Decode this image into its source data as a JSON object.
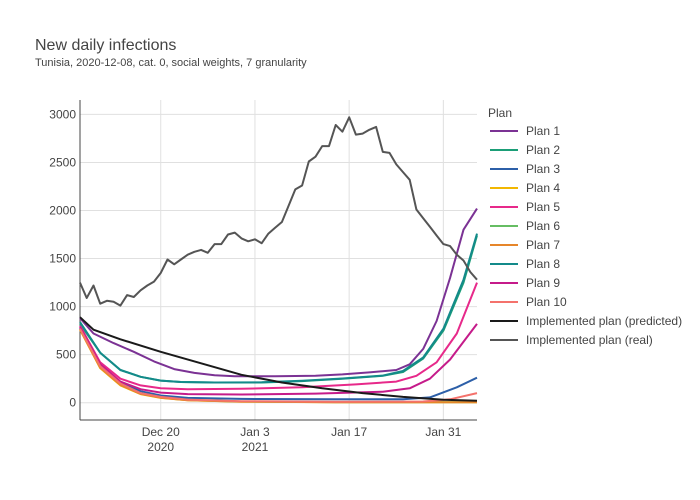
{
  "chart_data": {
    "type": "line",
    "title": "New daily infections",
    "subtitle": "Tunisia, 2020-12-08, cat. 0, social weights, 7 granularity",
    "xlabel": "",
    "ylabel": "",
    "x_start": "2020-12-08",
    "x_end": "2021-02-05",
    "x_ticks": [
      {
        "date": "2020-12-20",
        "label": "Dec 20",
        "sub": "2020"
      },
      {
        "date": "2021-01-03",
        "label": "Jan 3",
        "sub": "2021"
      },
      {
        "date": "2021-01-17",
        "label": "Jan 17",
        "sub": ""
      },
      {
        "date": "2021-01-31",
        "label": "Jan 31",
        "sub": ""
      }
    ],
    "ylim": [
      -180,
      3150
    ],
    "y_ticks": [
      0,
      500,
      1000,
      1500,
      2000,
      2500,
      3000
    ],
    "grid": true,
    "legend": {
      "title": "Plan",
      "position": "right"
    },
    "series": [
      {
        "name": "Plan 1",
        "color": "#7b3294",
        "points": [
          [
            "2020-12-08",
            880
          ],
          [
            "2020-12-10",
            720
          ],
          [
            "2020-12-13",
            620
          ],
          [
            "2020-12-16",
            530
          ],
          [
            "2020-12-19",
            430
          ],
          [
            "2020-12-22",
            350
          ],
          [
            "2020-12-25",
            310
          ],
          [
            "2020-12-28",
            285
          ],
          [
            "2020-12-31",
            275
          ],
          [
            "2021-01-06",
            275
          ],
          [
            "2021-01-12",
            280
          ],
          [
            "2021-01-16",
            295
          ],
          [
            "2021-01-20",
            315
          ],
          [
            "2021-01-24",
            340
          ],
          [
            "2021-01-26",
            400
          ],
          [
            "2021-01-28",
            560
          ],
          [
            "2021-01-30",
            850
          ],
          [
            "2021-02-01",
            1300
          ],
          [
            "2021-02-03",
            1800
          ],
          [
            "2021-02-05",
            2020
          ]
        ]
      },
      {
        "name": "Plan 2",
        "color": "#1b9e77",
        "points": [
          [
            "2020-12-08",
            820
          ],
          [
            "2020-12-11",
            520
          ],
          [
            "2020-12-14",
            340
          ],
          [
            "2020-12-17",
            270
          ],
          [
            "2020-12-20",
            230
          ],
          [
            "2020-12-23",
            215
          ],
          [
            "2020-12-28",
            210
          ],
          [
            "2021-01-04",
            210
          ],
          [
            "2021-01-10",
            225
          ],
          [
            "2021-01-16",
            250
          ],
          [
            "2021-01-22",
            280
          ],
          [
            "2021-01-25",
            320
          ],
          [
            "2021-01-28",
            460
          ],
          [
            "2021-01-31",
            750
          ],
          [
            "2021-02-03",
            1250
          ],
          [
            "2021-02-05",
            1740
          ]
        ]
      },
      {
        "name": "Plan 3",
        "color": "#2c5fa8",
        "points": [
          [
            "2020-12-08",
            780
          ],
          [
            "2020-12-11",
            400
          ],
          [
            "2020-12-14",
            210
          ],
          [
            "2020-12-17",
            120
          ],
          [
            "2020-12-20",
            75
          ],
          [
            "2020-12-24",
            50
          ],
          [
            "2021-01-01",
            40
          ],
          [
            "2021-01-15",
            35
          ],
          [
            "2021-01-25",
            35
          ],
          [
            "2021-01-29",
            55
          ],
          [
            "2021-02-02",
            160
          ],
          [
            "2021-02-05",
            260
          ]
        ]
      },
      {
        "name": "Plan 4",
        "color": "#f2b701",
        "points": [
          [
            "2020-12-08",
            760
          ],
          [
            "2020-12-11",
            360
          ],
          [
            "2020-12-14",
            180
          ],
          [
            "2020-12-17",
            90
          ],
          [
            "2020-12-20",
            50
          ],
          [
            "2020-12-24",
            25
          ],
          [
            "2021-01-01",
            10
          ],
          [
            "2021-01-15",
            5
          ],
          [
            "2021-02-05",
            5
          ]
        ]
      },
      {
        "name": "Plan 5",
        "color": "#e7298a",
        "points": [
          [
            "2020-12-08",
            800
          ],
          [
            "2020-12-11",
            420
          ],
          [
            "2020-12-14",
            250
          ],
          [
            "2020-12-17",
            180
          ],
          [
            "2020-12-20",
            150
          ],
          [
            "2020-12-24",
            140
          ],
          [
            "2021-01-01",
            145
          ],
          [
            "2021-01-10",
            160
          ],
          [
            "2021-01-18",
            190
          ],
          [
            "2021-01-24",
            220
          ],
          [
            "2021-01-27",
            280
          ],
          [
            "2021-01-30",
            420
          ],
          [
            "2021-02-02",
            720
          ],
          [
            "2021-02-05",
            1250
          ]
        ]
      },
      {
        "name": "Plan 6",
        "color": "#66bd63",
        "points": [
          [
            "2020-12-08",
            770
          ],
          [
            "2020-12-11",
            370
          ],
          [
            "2020-12-14",
            190
          ],
          [
            "2020-12-17",
            95
          ],
          [
            "2020-12-20",
            55
          ],
          [
            "2020-12-24",
            28
          ],
          [
            "2021-01-01",
            12
          ],
          [
            "2021-01-15",
            6
          ],
          [
            "2021-02-05",
            6
          ]
        ]
      },
      {
        "name": "Plan 7",
        "color": "#e6862a",
        "points": [
          [
            "2020-12-08",
            765
          ],
          [
            "2020-12-11",
            365
          ],
          [
            "2020-12-14",
            185
          ],
          [
            "2020-12-17",
            92
          ],
          [
            "2020-12-20",
            52
          ],
          [
            "2020-12-24",
            26
          ],
          [
            "2021-01-01",
            11
          ],
          [
            "2021-01-15",
            5
          ],
          [
            "2021-02-05",
            5
          ]
        ]
      },
      {
        "name": "Plan 8",
        "color": "#138a8a",
        "points": [
          [
            "2020-12-08",
            840
          ],
          [
            "2020-12-11",
            520
          ],
          [
            "2020-12-14",
            340
          ],
          [
            "2020-12-17",
            270
          ],
          [
            "2020-12-20",
            230
          ],
          [
            "2020-12-23",
            215
          ],
          [
            "2020-12-28",
            210
          ],
          [
            "2021-01-04",
            212
          ],
          [
            "2021-01-10",
            228
          ],
          [
            "2021-01-16",
            252
          ],
          [
            "2021-01-22",
            282
          ],
          [
            "2021-01-25",
            330
          ],
          [
            "2021-01-28",
            470
          ],
          [
            "2021-01-31",
            770
          ],
          [
            "2021-02-03",
            1280
          ],
          [
            "2021-02-05",
            1760
          ]
        ]
      },
      {
        "name": "Plan 9",
        "color": "#c51b8a",
        "points": [
          [
            "2020-12-08",
            790
          ],
          [
            "2020-12-11",
            400
          ],
          [
            "2020-12-14",
            220
          ],
          [
            "2020-12-17",
            140
          ],
          [
            "2020-12-20",
            105
          ],
          [
            "2020-12-24",
            90
          ],
          [
            "2021-01-01",
            85
          ],
          [
            "2021-01-12",
            95
          ],
          [
            "2021-01-22",
            115
          ],
          [
            "2021-01-26",
            150
          ],
          [
            "2021-01-29",
            250
          ],
          [
            "2021-02-01",
            450
          ],
          [
            "2021-02-05",
            820
          ]
        ]
      },
      {
        "name": "Plan 10",
        "color": "#f4726c",
        "points": [
          [
            "2020-12-08",
            770
          ],
          [
            "2020-12-11",
            380
          ],
          [
            "2020-12-14",
            200
          ],
          [
            "2020-12-17",
            100
          ],
          [
            "2020-12-20",
            60
          ],
          [
            "2020-12-24",
            32
          ],
          [
            "2021-01-01",
            16
          ],
          [
            "2021-01-15",
            10
          ],
          [
            "2021-01-28",
            12
          ],
          [
            "2021-02-01",
            35
          ],
          [
            "2021-02-05",
            100
          ]
        ]
      },
      {
        "name": "Implemented plan (predicted)",
        "color": "#1a1a1a",
        "points": [
          [
            "2020-12-08",
            890
          ],
          [
            "2020-12-10",
            760
          ],
          [
            "2020-12-14",
            660
          ],
          [
            "2020-12-20",
            530
          ],
          [
            "2020-12-26",
            410
          ],
          [
            "2021-01-01",
            290
          ],
          [
            "2021-01-07",
            210
          ],
          [
            "2021-01-13",
            150
          ],
          [
            "2021-01-19",
            100
          ],
          [
            "2021-01-25",
            60
          ],
          [
            "2021-01-31",
            30
          ],
          [
            "2021-02-05",
            20
          ]
        ]
      },
      {
        "name": "Implemented plan (real)",
        "color": "#555555",
        "points": [
          [
            "2020-12-08",
            1250
          ],
          [
            "2020-12-09",
            1090
          ],
          [
            "2020-12-10",
            1220
          ],
          [
            "2020-12-11",
            1030
          ],
          [
            "2020-12-12",
            1060
          ],
          [
            "2020-12-13",
            1050
          ],
          [
            "2020-12-14",
            1010
          ],
          [
            "2020-12-15",
            1120
          ],
          [
            "2020-12-16",
            1100
          ],
          [
            "2020-12-17",
            1170
          ],
          [
            "2020-12-18",
            1220
          ],
          [
            "2020-12-19",
            1260
          ],
          [
            "2020-12-20",
            1350
          ],
          [
            "2020-12-21",
            1490
          ],
          [
            "2020-12-22",
            1440
          ],
          [
            "2020-12-23",
            1490
          ],
          [
            "2020-12-24",
            1540
          ],
          [
            "2020-12-25",
            1570
          ],
          [
            "2020-12-26",
            1590
          ],
          [
            "2020-12-27",
            1560
          ],
          [
            "2020-12-28",
            1650
          ],
          [
            "2020-12-29",
            1650
          ],
          [
            "2020-12-30",
            1750
          ],
          [
            "2020-12-31",
            1770
          ],
          [
            "2021-01-01",
            1710
          ],
          [
            "2021-01-02",
            1680
          ],
          [
            "2021-01-03",
            1700
          ],
          [
            "2021-01-04",
            1660
          ],
          [
            "2021-01-05",
            1760
          ],
          [
            "2021-01-06",
            1820
          ],
          [
            "2021-01-07",
            1880
          ],
          [
            "2021-01-08",
            2050
          ],
          [
            "2021-01-09",
            2220
          ],
          [
            "2021-01-10",
            2260
          ],
          [
            "2021-01-11",
            2510
          ],
          [
            "2021-01-12",
            2560
          ],
          [
            "2021-01-13",
            2670
          ],
          [
            "2021-01-14",
            2670
          ],
          [
            "2021-01-15",
            2890
          ],
          [
            "2021-01-16",
            2820
          ],
          [
            "2021-01-17",
            2970
          ],
          [
            "2021-01-18",
            2790
          ],
          [
            "2021-01-19",
            2800
          ],
          [
            "2021-01-20",
            2840
          ],
          [
            "2021-01-21",
            2870
          ],
          [
            "2021-01-22",
            2610
          ],
          [
            "2021-01-23",
            2600
          ],
          [
            "2021-01-24",
            2480
          ],
          [
            "2021-01-25",
            2400
          ],
          [
            "2021-01-26",
            2320
          ],
          [
            "2021-01-27",
            2010
          ],
          [
            "2021-01-28",
            1920
          ],
          [
            "2021-01-29",
            1830
          ],
          [
            "2021-01-30",
            1740
          ],
          [
            "2021-01-31",
            1650
          ],
          [
            "2021-02-01",
            1630
          ],
          [
            "2021-02-02",
            1540
          ],
          [
            "2021-02-03",
            1480
          ],
          [
            "2021-02-04",
            1360
          ],
          [
            "2021-02-05",
            1280
          ]
        ]
      }
    ]
  }
}
